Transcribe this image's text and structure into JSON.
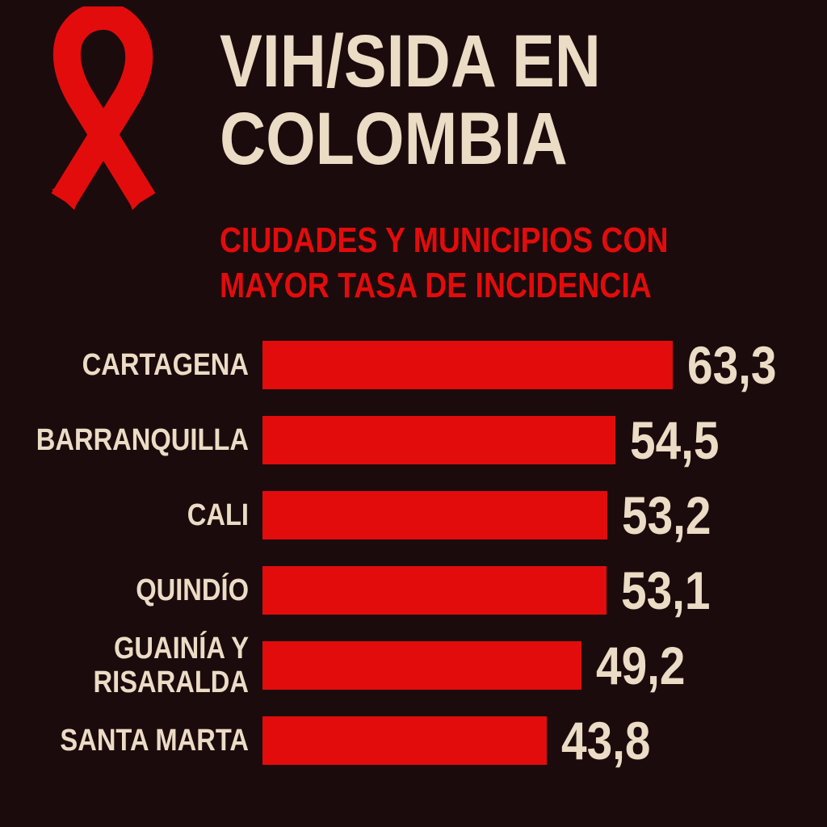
{
  "chart_data": {
    "type": "bar",
    "orientation": "horizontal",
    "title": "VIH/SIDA EN COLOMBIA",
    "subtitle": "CIUDADES Y MUNICIPIOS CON MAYOR TASA DE INCIDENCIA",
    "categories": [
      "CARTAGENA",
      "BARRANQUILLA",
      "CALI",
      "QUINDÍO",
      "GUAINÍA Y RISARALDA",
      "SANTA MARTA"
    ],
    "values": [
      63.3,
      54.5,
      53.2,
      53.1,
      49.2,
      43.8
    ],
    "value_labels": [
      "63,3",
      "54,5",
      "53,2",
      "53,1",
      "49,2",
      "43,8"
    ],
    "color": "#e20c0c"
  }
}
